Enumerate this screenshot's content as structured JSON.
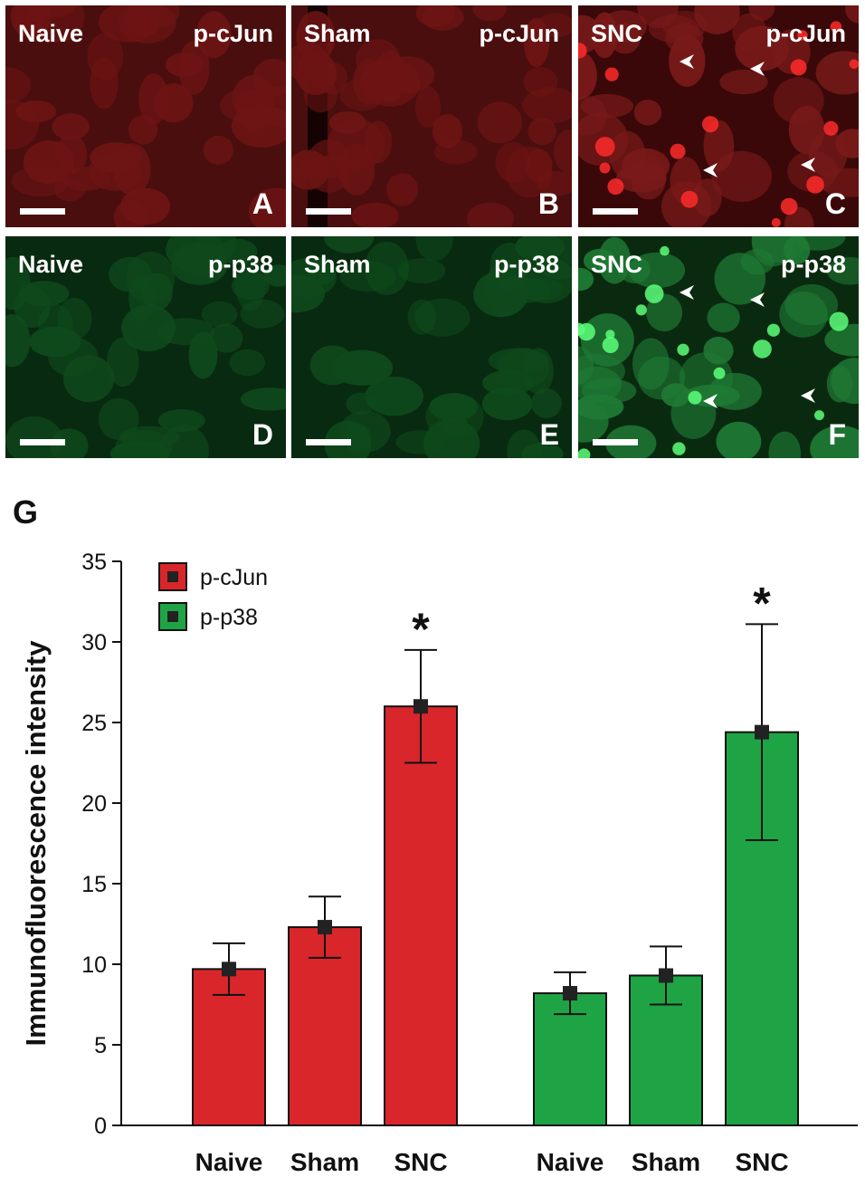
{
  "panels": [
    {
      "id": "A",
      "condition": "Naive",
      "marker": "p-cJun",
      "letter": "A",
      "stain": "red",
      "arrowheads": 0
    },
    {
      "id": "B",
      "condition": "Sham",
      "marker": "p-cJun",
      "letter": "B",
      "stain": "red",
      "arrowheads": 0
    },
    {
      "id": "C",
      "condition": "SNC",
      "marker": "p-cJun",
      "letter": "C",
      "stain": "red",
      "arrowheads": 4
    },
    {
      "id": "D",
      "condition": "Naive",
      "marker": "p-p38",
      "letter": "D",
      "stain": "green",
      "arrowheads": 0
    },
    {
      "id": "E",
      "condition": "Sham",
      "marker": "p-p38",
      "letter": "E",
      "stain": "green",
      "arrowheads": 0
    },
    {
      "id": "F",
      "condition": "SNC",
      "marker": "p-p38",
      "letter": "F",
      "stain": "green",
      "arrowheads": 4
    }
  ],
  "colors": {
    "red_bar": "#d9262b",
    "green_bar": "#1ea445",
    "red_tissue": "#6e1414",
    "green_tissue": "#0f4a1c",
    "text": "#111111"
  },
  "figure_label": "G",
  "chart_data": {
    "type": "bar",
    "ylabel": "Immunofluorescence intensity",
    "xlabel": "",
    "ylim": [
      0,
      35
    ],
    "yticks": [
      0,
      5,
      10,
      15,
      20,
      25,
      30,
      35
    ],
    "categories": [
      "Naive",
      "Sham",
      "SNC"
    ],
    "series": [
      {
        "name": "p-cJun",
        "color": "#d9262b",
        "values": [
          9.7,
          12.3,
          26.0
        ],
        "errors": [
          1.6,
          1.9,
          3.5
        ],
        "significant": [
          false,
          false,
          true
        ]
      },
      {
        "name": "p-p38",
        "color": "#1ea445",
        "values": [
          8.2,
          9.3,
          24.4
        ],
        "errors": [
          1.3,
          1.8,
          6.7
        ],
        "significant": [
          false,
          false,
          true
        ]
      }
    ],
    "significance_marker": "*",
    "legend": {
      "position": "top-left",
      "entries": [
        "p-cJun",
        "p-p38"
      ]
    },
    "grid": false
  }
}
